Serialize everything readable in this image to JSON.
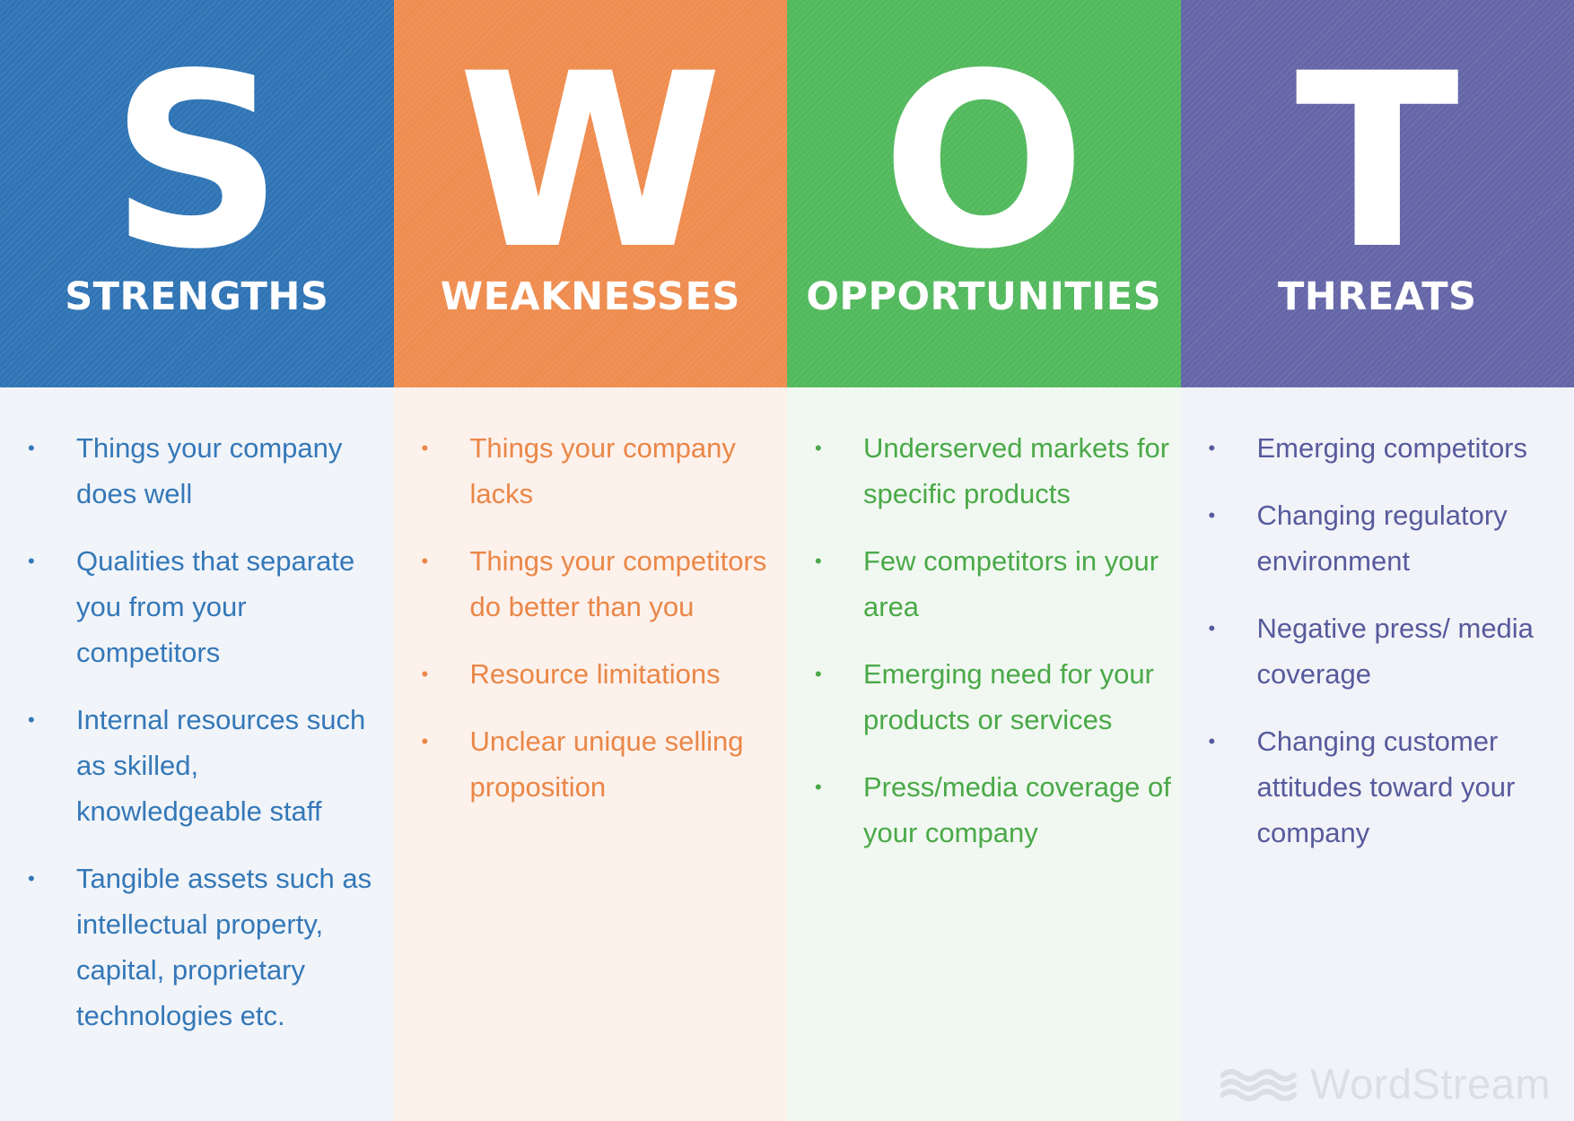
{
  "columns": [
    {
      "letter": "S",
      "title": "STRENGTHS",
      "header_color": "#2f74b5",
      "body_color": "#f1f4f9",
      "text_color": "#3478b8",
      "items": [
        "Things your company does well",
        "Qualities that separate you from your competitors",
        "Internal resources such as skilled, knowledgeable staff",
        "Tangible assets such as intellectual property, capital, proprietary technologies etc."
      ]
    },
    {
      "letter": "W",
      "title": "WEAKNESSES",
      "header_color": "#ef8c4f",
      "body_color": "#fdf1ec",
      "text_color": "#ea8747",
      "items": [
        "Things your company lacks",
        "Things your competitors do better than you",
        "Resource limitations",
        "Unclear unique selling proposition"
      ]
    },
    {
      "letter": "O",
      "title": "OPPORTUNITIES",
      "header_color": "#52b95d",
      "body_color": "#f1f8f1",
      "text_color": "#4aa948",
      "items": [
        "Underserved markets for specific products",
        "Few competitors in your area",
        "Emerging need for your products or services",
        "Press/media coverage of your company"
      ]
    },
    {
      "letter": "T",
      "title": "THREATS",
      "header_color": "#6466a8",
      "body_color": "#f2f3f8",
      "text_color": "#575a9c",
      "items": [
        "Emerging competitors",
        "Changing regulatory environment",
        "Negative press/ media coverage",
        "Changing customer attitudes toward your company"
      ]
    }
  ],
  "bullet_glyph": "•",
  "logo": {
    "text": "WordStream",
    "icon": "wordstream-wave-icon"
  }
}
